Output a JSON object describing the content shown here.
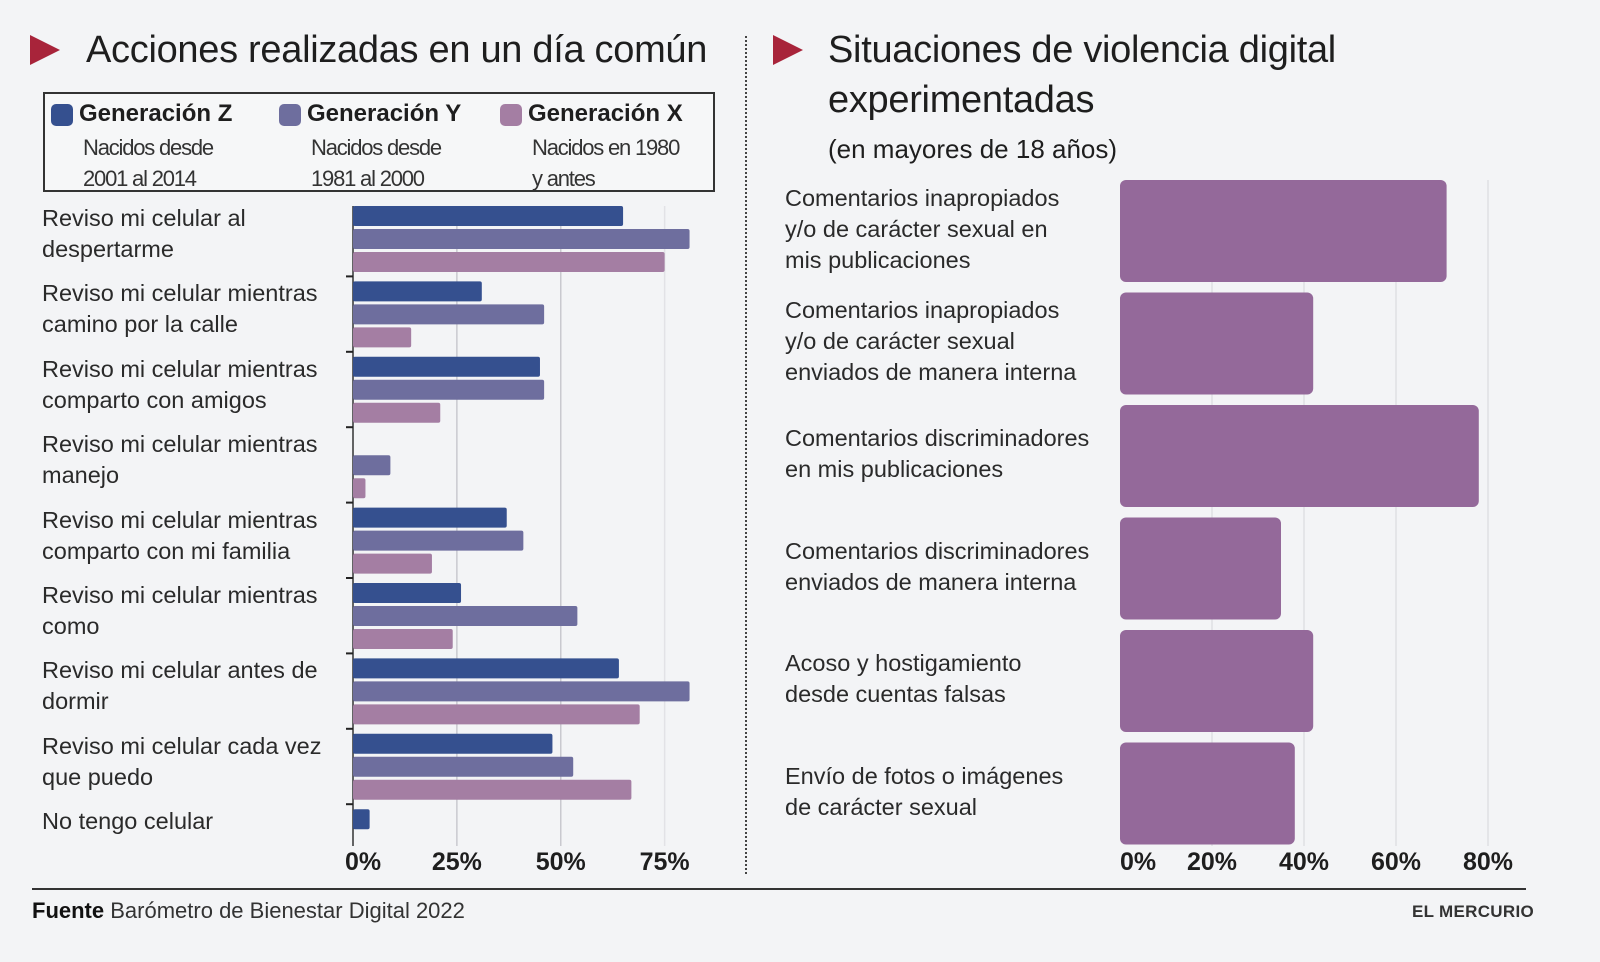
{
  "left_panel": {
    "title": "Acciones realizadas en un día común",
    "legend": [
      {
        "name": "Generación Z",
        "sub": "Nacidos desde\n2001 al 2014",
        "color": "#35508f"
      },
      {
        "name": "Generación Y",
        "sub": "Nacidos desde\n1981 al 2000",
        "color": "#6e6e9e"
      },
      {
        "name": "Generación X",
        "sub": "Nacidos en 1980\ny antes",
        "color": "#a47ea3"
      }
    ]
  },
  "right_panel": {
    "title_line1": "Situaciones de violencia digital",
    "title_line2": "experimentadas",
    "subtitle": "(en mayores de 18 años)"
  },
  "footer": {
    "source_label": "Fuente",
    "source_text": "Barómetro de Bienestar Digital 2022",
    "brand": "EL MERCURIO"
  },
  "chart_data": [
    {
      "type": "bar",
      "orientation": "horizontal",
      "title": "Acciones realizadas en un día común",
      "categories": [
        "Reviso mi celular al\ndespertarme",
        "Reviso mi celular mientras\ncamino por la calle",
        "Reviso mi celular mientras\ncomparto con amigos",
        "Reviso mi celular mientras\nmanejo",
        "Reviso mi celular mientras\ncomparto con mi familia",
        "Reviso mi celular mientras\ncomo",
        "Reviso mi celular antes de\ndormir",
        "Reviso mi celular cada vez\nque puedo",
        "No tengo celular"
      ],
      "series": [
        {
          "name": "Generación Z",
          "color": "#35508f",
          "values": [
            65,
            31,
            45,
            0,
            37,
            26,
            64,
            48,
            4
          ]
        },
        {
          "name": "Generación Y",
          "color": "#6e6e9e",
          "values": [
            81,
            46,
            46,
            9,
            41,
            54,
            81,
            53,
            0
          ]
        },
        {
          "name": "Generación X",
          "color": "#a47ea3",
          "values": [
            75,
            14,
            21,
            3,
            19,
            24,
            69,
            67,
            0
          ]
        }
      ],
      "xlim": [
        0,
        75
      ],
      "xticks": [
        0,
        25,
        50,
        75
      ],
      "xtick_labels": [
        "0%",
        "25%",
        "50%",
        "75%"
      ],
      "xlabel": "",
      "ylabel": "",
      "grid": true,
      "legend": "top"
    },
    {
      "type": "bar",
      "orientation": "horizontal",
      "title": "Situaciones de violencia digital experimentadas",
      "subtitle": "(en mayores de 18 años)",
      "categories": [
        "Comentarios inapropiados\ny/o de carácter sexual en\nmis publicaciones",
        "Comentarios inapropiados\ny/o de carácter sexual\nenviados de manera interna",
        "Comentarios discriminadores\nen mis publicaciones",
        "Comentarios discriminadores\nenviados de manera interna",
        "Acoso y hostigamiento\ndesde cuentas falsas",
        "Envío de fotos o imágenes\nde carácter sexual"
      ],
      "values": [
        71,
        42,
        78,
        35,
        42,
        38
      ],
      "color": "#94699a",
      "xlim": [
        0,
        80
      ],
      "xticks": [
        0,
        20,
        40,
        60,
        80
      ],
      "xtick_labels": [
        "0%",
        "20%",
        "40%",
        "60%",
        "80%"
      ],
      "xlabel": "",
      "ylabel": "",
      "grid": true
    }
  ]
}
